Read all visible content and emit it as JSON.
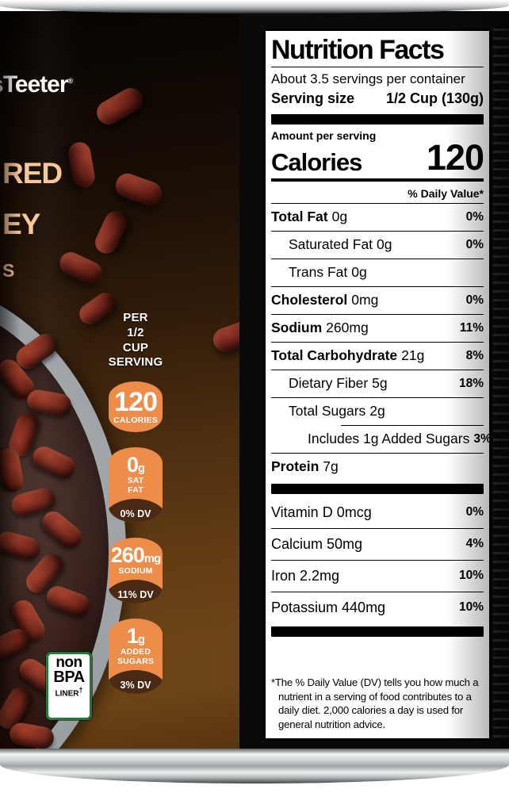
{
  "brand": {
    "logo_prefix": "s",
    "logo_text": "Teeter",
    "logo_reg": "®"
  },
  "front_fragments": {
    "line1": "RED",
    "line2": "EY",
    "line3": "S"
  },
  "per_serving_header": "PER 1/2 CUP SERVING",
  "badges": [
    {
      "num": "120",
      "unit": "",
      "label": "CALORIES",
      "dv": ""
    },
    {
      "num": "0",
      "unit": "g",
      "label": "SAT FAT",
      "dv": "0% DV"
    },
    {
      "num": "260",
      "unit": "mg",
      "label": "SODIUM",
      "dv": "11% DV"
    },
    {
      "num": "1",
      "unit": "g",
      "label": "ADDED SUGARS",
      "dv": "3% DV"
    }
  ],
  "bpa_badge": {
    "line1": "non",
    "line2": "BPA",
    "line3": "LINER",
    "dagger": "†"
  },
  "nutrition": {
    "title": "Nutrition Facts",
    "servings_per_container": "About 3.5 servings per container",
    "serving_size_label": "Serving size",
    "serving_size_value": "1/2 Cup (130g)",
    "amount_per_serving": "Amount per serving",
    "calories_label": "Calories",
    "calories_value": "120",
    "daily_value_header": "% Daily Value*",
    "rows": [
      {
        "name": "Total Fat",
        "amount": "0g",
        "dv": "0%",
        "bold": true,
        "indent": 0
      },
      {
        "name": "Saturated Fat",
        "amount": "0g",
        "dv": "0%",
        "bold": false,
        "indent": 1
      },
      {
        "name": "Trans Fat",
        "amount": "0g",
        "dv": "",
        "bold": false,
        "indent": 1
      },
      {
        "name": "Cholesterol",
        "amount": "0mg",
        "dv": "0%",
        "bold": true,
        "indent": 0
      },
      {
        "name": "Sodium",
        "amount": "260mg",
        "dv": "11%",
        "bold": true,
        "indent": 0
      },
      {
        "name": "Total Carbohydrate",
        "amount": "21g",
        "dv": "8%",
        "bold": true,
        "indent": 0
      },
      {
        "name": "Dietary Fiber",
        "amount": "5g",
        "dv": "18%",
        "bold": false,
        "indent": 1
      },
      {
        "name": "Total Sugars",
        "amount": "2g",
        "dv": "",
        "bold": false,
        "indent": 1
      },
      {
        "name": "Includes 1g Added Sugars",
        "amount": "",
        "dv": "3%",
        "bold": false,
        "indent": 2,
        "sep_indent": true
      },
      {
        "name": "Protein",
        "amount": "7g",
        "dv": "",
        "bold": true,
        "indent": 0
      }
    ],
    "vitamins": [
      {
        "name": "Vitamin D",
        "amount": "0mcg",
        "dv": "0%"
      },
      {
        "name": "Calcium",
        "amount": "50mg",
        "dv": "4%"
      },
      {
        "name": "Iron",
        "amount": "2.2mg",
        "dv": "10%"
      },
      {
        "name": "Potassium",
        "amount": "440mg",
        "dv": "10%"
      }
    ],
    "footnote": "*The % Daily Value (DV) tells you how much a nutrient in a serving of food contributes to a daily diet. 2,000 calories a day is used for general nutrition advice."
  },
  "colors": {
    "badge_orange": "#EE8C4A",
    "badge_bump_brown": "#4A2A14",
    "front_text_peach": "#F8C795",
    "bpa_green": "#1C7A33",
    "label_black": "#0B0A09"
  }
}
